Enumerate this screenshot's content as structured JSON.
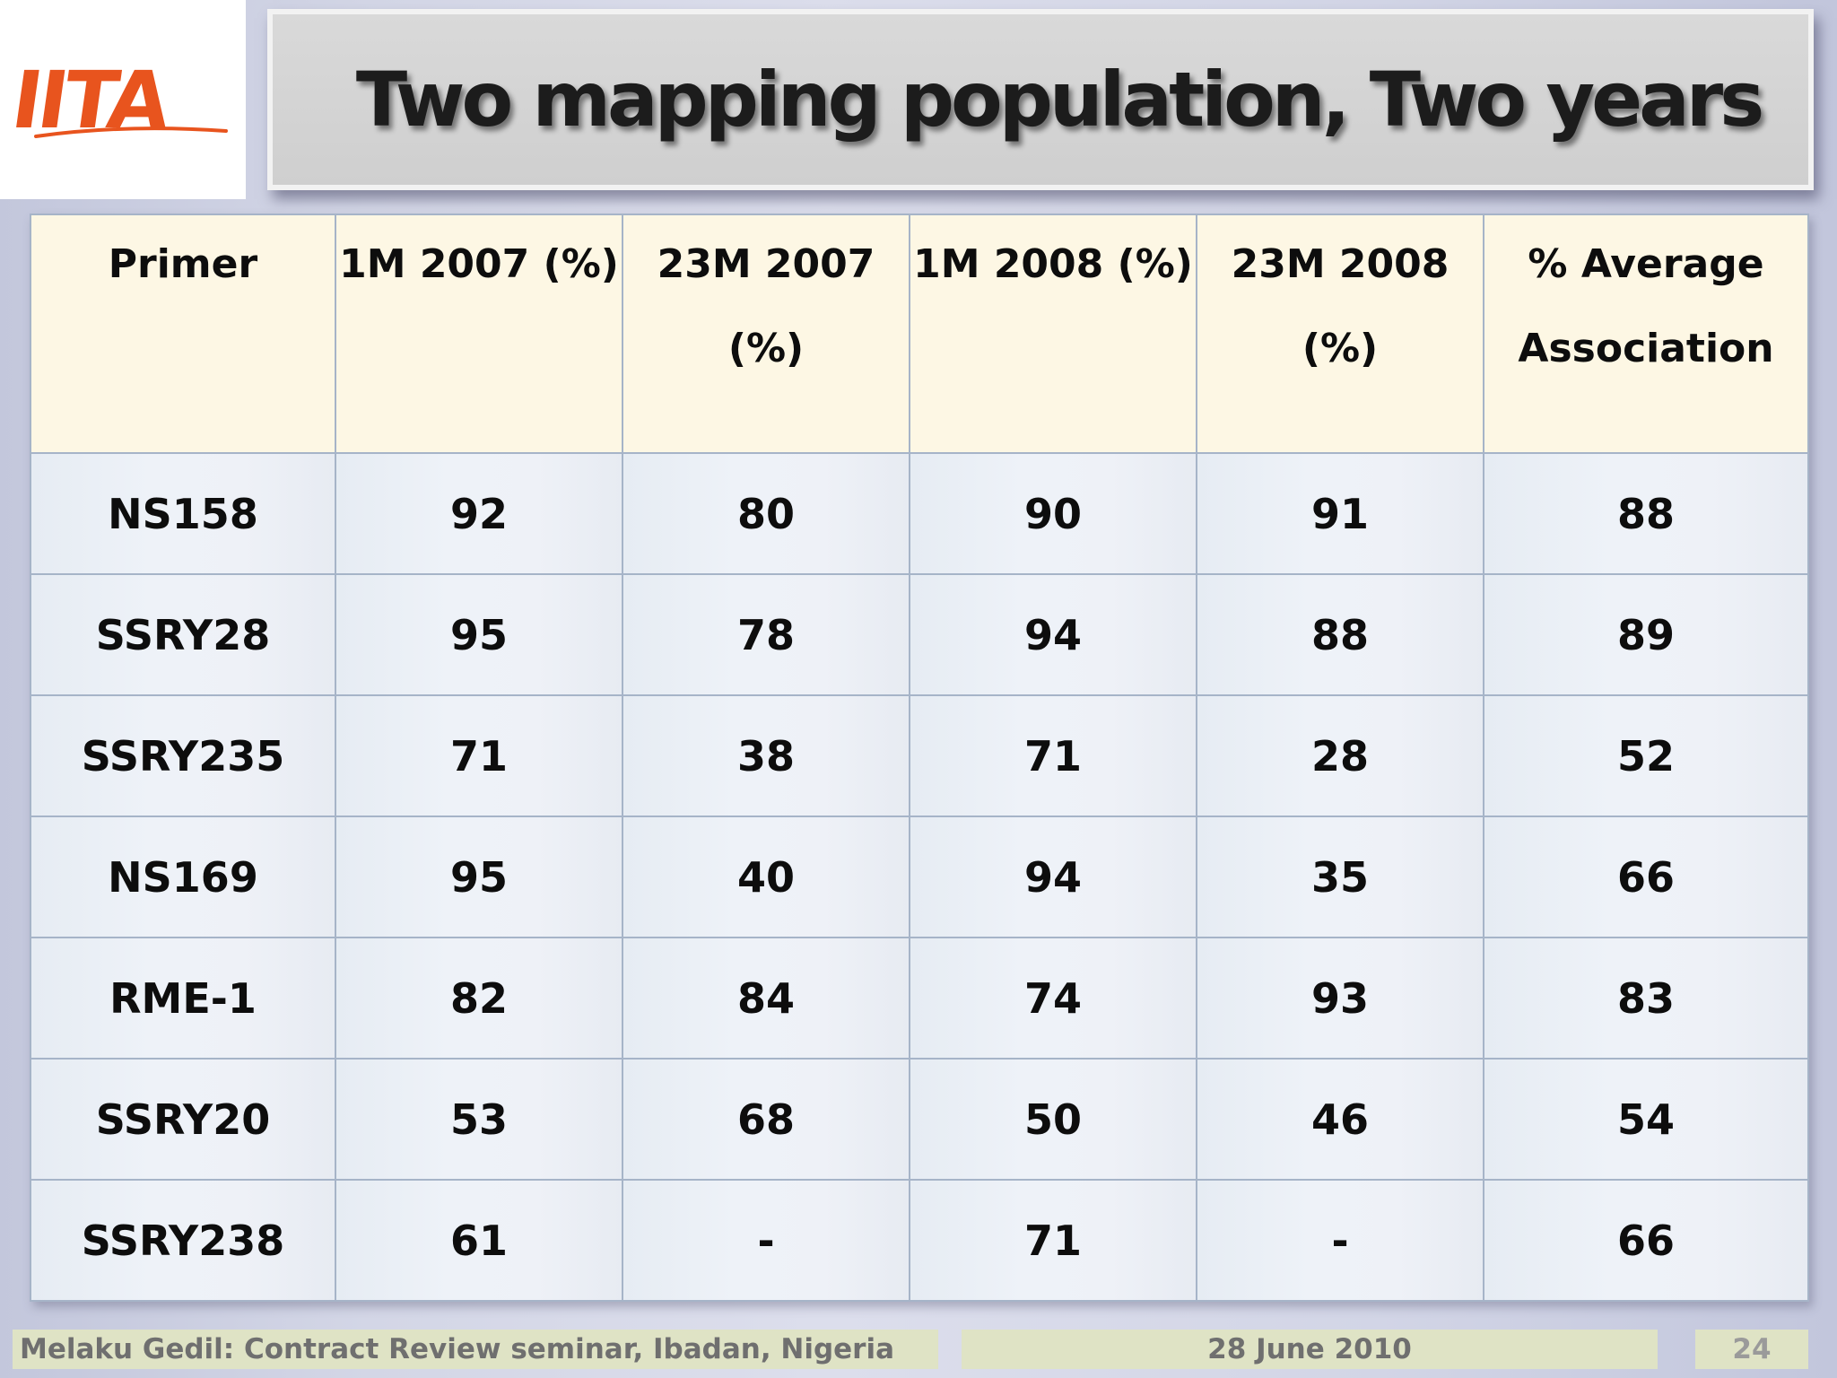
{
  "slide": {
    "logo_text": "IITA",
    "title": "Two mapping population, Two years"
  },
  "table": {
    "headers": [
      [
        "Primer"
      ],
      [
        "1M 2007 (%)"
      ],
      [
        "23M 2007",
        "(%)"
      ],
      [
        "1M 2008 (%)"
      ],
      [
        "23M 2008",
        "(%)"
      ],
      [
        "% Average",
        "Association"
      ]
    ],
    "rows": [
      [
        "NS158",
        "92",
        "80",
        "90",
        "91",
        "88"
      ],
      [
        "SSRY28",
        "95",
        "78",
        "94",
        "88",
        "89"
      ],
      [
        "SSRY235",
        "71",
        "38",
        "71",
        "28",
        "52"
      ],
      [
        "NS169",
        "95",
        "40",
        "94",
        "35",
        "66"
      ],
      [
        "RME-1",
        "82",
        "84",
        "74",
        "93",
        "83"
      ],
      [
        "SSRY20",
        "53",
        "68",
        "50",
        "46",
        "54"
      ],
      [
        "SSRY238",
        "61",
        "-",
        "71",
        "-",
        "66"
      ]
    ]
  },
  "footer": {
    "author": "Melaku Gedil: Contract Review seminar,  Ibadan, Nigeria",
    "date": "28 June 2010",
    "page": "24"
  },
  "colors": {
    "logo_orange": "#e8541e",
    "header_fill": "#fdf7e4",
    "body_fill": "#eef2f8",
    "grid_line": "#a6b4c8",
    "footer_fill": "#dfe3c5"
  }
}
